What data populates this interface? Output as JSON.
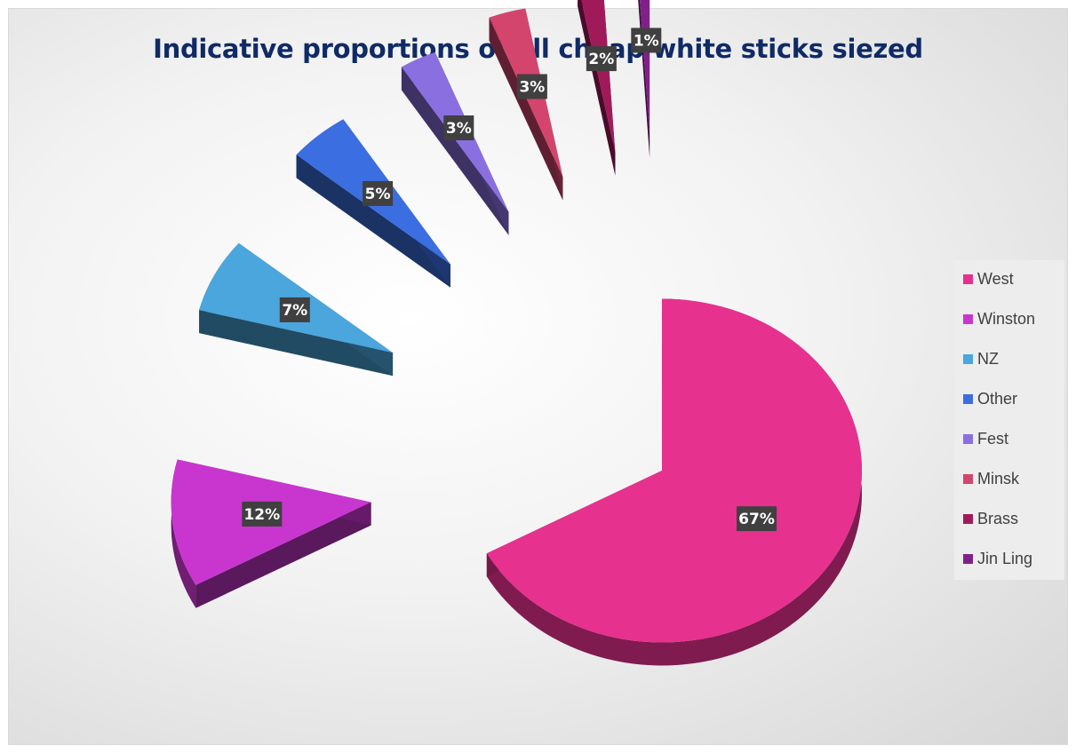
{
  "chart_data": {
    "type": "pie",
    "title": "Indicative proportions of all cheap white sticks siezed",
    "exploded": true,
    "legend_position": "right",
    "categories": [
      "West",
      "Winston",
      "NZ",
      "Other",
      "Fest",
      "Minsk",
      "Brass",
      "Jin Ling"
    ],
    "values": [
      67,
      12,
      7,
      5,
      3,
      3,
      2,
      1
    ],
    "labels": [
      "67%",
      "12%",
      "7%",
      "5%",
      "3%",
      "3%",
      "2%",
      "1%"
    ],
    "colors": [
      "#e6318f",
      "#c936cf",
      "#4aa6dc",
      "#3b6ee0",
      "#8a6fe0",
      "#d4456e",
      "#a01a5a",
      "#82208a"
    ]
  }
}
